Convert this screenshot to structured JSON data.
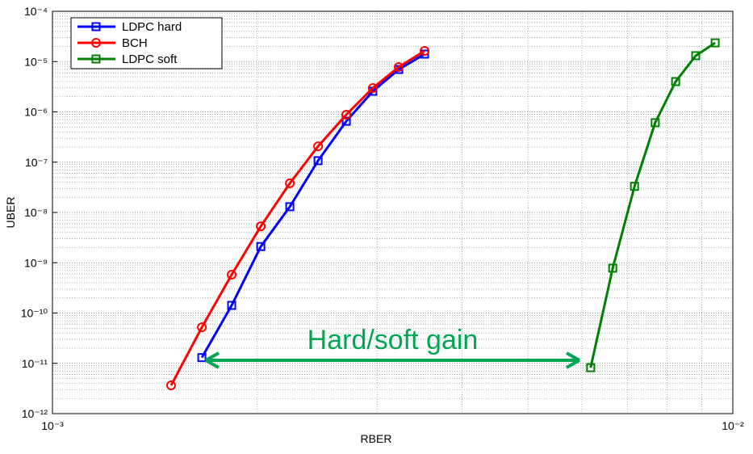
{
  "chart_data": {
    "type": "line",
    "x_label": "RBER",
    "y_label": "UBER",
    "xscale": "log",
    "yscale": "log",
    "grid": true,
    "minor_grid": true,
    "legend": "upper left",
    "xlim": [
      0.001,
      0.01
    ],
    "xticks": [
      {
        "value": 0.001,
        "label": "10⁻³"
      },
      {
        "value": 0.01,
        "label": "10⁻²"
      }
    ],
    "ylim": [
      1e-12,
      0.0001
    ],
    "yticks": [
      {
        "value": 1e-12,
        "label": "10⁻¹²"
      },
      {
        "value": 1e-11,
        "label": "10⁻¹¹"
      },
      {
        "value": 1e-10,
        "label": "10⁻¹⁰"
      },
      {
        "value": 1e-09,
        "label": "10⁻⁹"
      },
      {
        "value": 1e-08,
        "label": "10⁻⁸"
      },
      {
        "value": 1e-07,
        "label": "10⁻⁷"
      },
      {
        "value": 1e-06,
        "label": "10⁻⁶"
      },
      {
        "value": 1e-05,
        "label": "10⁻⁵"
      },
      {
        "value": 0.0001,
        "label": "10⁻⁴"
      }
    ],
    "series": [
      {
        "name": "LDPC hard",
        "color": "#0000ff",
        "marker": "square",
        "x": [
          0.001658,
          0.001834,
          0.002024,
          0.002233,
          0.002457,
          0.002703,
          0.002957,
          0.003228,
          0.003523
        ],
        "values": [
          1.3e-11,
          1.42e-10,
          2.1e-09,
          1.3e-08,
          1.07e-07,
          6.5e-07,
          2.57e-06,
          6.97e-06,
          1.41e-05
        ]
      },
      {
        "name": "BCH",
        "color": "#ff0000",
        "marker": "circle",
        "x": [
          0.001494,
          0.001658,
          0.001834,
          0.002024,
          0.002233,
          0.002457,
          0.002703,
          0.002957,
          0.003228,
          0.003523
        ],
        "values": [
          3.65e-12,
          5.2e-11,
          5.8e-10,
          5.3e-09,
          3.8e-08,
          2.07e-07,
          8.8e-07,
          2.98e-06,
          7.8e-06,
          1.63e-05
        ]
      },
      {
        "name": "LDPC soft",
        "color": "#008000",
        "marker": "square",
        "x": [
          0.00618,
          0.00666,
          0.00717,
          0.00769,
          0.00824,
          0.00882,
          0.00942
        ],
        "values": [
          8.2e-12,
          7.8e-10,
          3.3e-08,
          6.1e-07,
          4e-06,
          1.31e-05,
          2.36e-05
        ]
      }
    ],
    "annotation": {
      "text": "Hard/soft gain",
      "color": "#00a651"
    }
  }
}
